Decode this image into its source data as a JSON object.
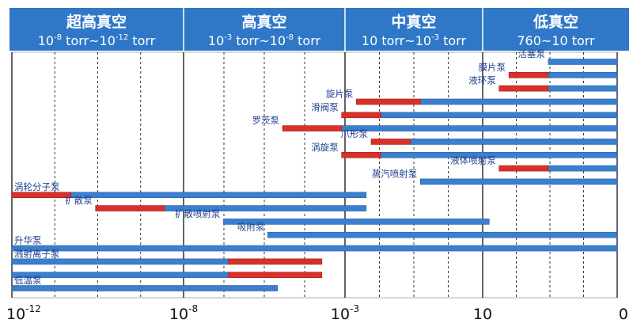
{
  "chart_data": {
    "type": "bar",
    "orientation": "horizontal-ranges",
    "x_axis": {
      "tick_labels": [
        {
          "base": "10",
          "exp": "-12"
        },
        {
          "base": "10",
          "exp": "-8"
        },
        {
          "base": "10",
          "exp": "-3"
        },
        {
          "base": "10",
          "exp": ""
        },
        {
          "base": "0",
          "exp": ""
        }
      ]
    },
    "header_bands": [
      {
        "name": "超高真空",
        "range": {
          "base1": "10",
          "exp1": "-8",
          "mid": " torr~",
          "base2": "10",
          "exp2": "-12",
          "unit": " torr"
        }
      },
      {
        "name": "高真空",
        "range": {
          "base1": "10",
          "exp1": "-3",
          "mid": " torr~",
          "base2": "10",
          "exp2": "-8",
          "unit": " torr"
        }
      },
      {
        "name": "中真空",
        "range": {
          "base1": "10",
          "exp1": "",
          "mid": " torr~",
          "base2": "10",
          "exp2": "-3",
          "unit": " torr"
        }
      },
      {
        "name": "低真空",
        "range": {
          "base1": "760",
          "exp1": "",
          "mid": "~",
          "base2": "10",
          "exp2": "",
          "unit": " torr"
        }
      }
    ],
    "colors": {
      "header_bg": "#2f78c8",
      "bar_blue": "#3b7fcf",
      "bar_red": "#d8312a",
      "label": "#1f3f8f",
      "grid": "#222222"
    },
    "series": [
      {
        "name": "活塞泵",
        "red": null,
        "blue": [
          3.9,
          4.6
        ]
      },
      {
        "name": "膜片泵",
        "red": [
          3.5,
          3.9
        ],
        "blue": [
          3.9,
          4.6
        ]
      },
      {
        "name": "液环泵",
        "red": [
          3.4,
          3.9
        ],
        "blue": [
          3.9,
          4.6
        ]
      },
      {
        "name": "旋片泵",
        "red": [
          1.95,
          2.6
        ],
        "blue": [
          2.6,
          4.6
        ]
      },
      {
        "name": "滑阀泵",
        "red": [
          1.8,
          2.2
        ],
        "blue": [
          2.2,
          4.6
        ]
      },
      {
        "name": "罗茨泵",
        "red": [
          1.2,
          1.8
        ],
        "blue": [
          1.8,
          4.6
        ]
      },
      {
        "name": "爪形泵",
        "red": [
          2.1,
          2.5
        ],
        "blue": [
          2.5,
          4.6
        ]
      },
      {
        "name": "涡旋泵",
        "red": [
          1.8,
          2.2
        ],
        "blue": [
          2.2,
          4.6
        ]
      },
      {
        "name": "液体喷射泵",
        "red": [
          3.4,
          3.9
        ],
        "blue": [
          3.9,
          4.6
        ]
      },
      {
        "name": "蒸汽喷射泵",
        "red": null,
        "blue": [
          2.6,
          4.6
        ]
      },
      {
        "name": "涡轮分子泵",
        "red": [
          -1.55,
          -0.95
        ],
        "blue": [
          -0.95,
          2.05
        ]
      },
      {
        "name": "扩散泵",
        "red": [
          -0.7,
          0.0
        ],
        "blue": [
          0.0,
          2.05
        ]
      },
      {
        "name": "扩散喷射泵",
        "red": null,
        "blue": [
          0.6,
          3.3
        ]
      },
      {
        "name": "吸附泵",
        "red": null,
        "blue": [
          1.05,
          4.6
        ]
      },
      {
        "name": "升华泵",
        "red": null,
        "blue": [
          -1.55,
          4.6
        ]
      },
      {
        "name": "溅射离子泵",
        "red": [
          0.65,
          1.6
        ],
        "blue": [
          -1.55,
          0.65
        ]
      },
      {
        "name": "",
        "red": [
          0.65,
          1.6
        ],
        "blue": [
          -1.55,
          0.65
        ]
      },
      {
        "name": "低温泵",
        "red": null,
        "blue": [
          -1.55,
          1.15
        ]
      }
    ]
  }
}
